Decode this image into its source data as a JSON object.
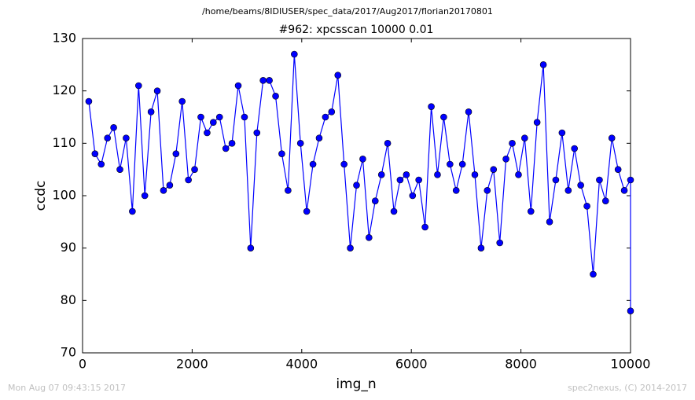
{
  "chart_data": {
    "type": "line",
    "suptitle": "/home/beams/8IDIUSER/spec_data/2017/Aug2017/florian20170801",
    "title": "#962: xpcsscan 10000 0.01",
    "xlabel": "img_n",
    "ylabel": "ccdc",
    "footer_left": "Mon Aug 07 09:43:15 2017",
    "footer_right": "spec2nexus, (C) 2014-2017",
    "x": [
      114,
      227,
      341,
      455,
      568,
      682,
      795,
      909,
      1023,
      1136,
      1250,
      1364,
      1477,
      1591,
      1705,
      1818,
      1932,
      2045,
      2159,
      2273,
      2386,
      2500,
      2614,
      2727,
      2841,
      2955,
      3068,
      3182,
      3295,
      3409,
      3523,
      3636,
      3750,
      3864,
      3977,
      4091,
      4205,
      4318,
      4432,
      4545,
      4659,
      4773,
      4886,
      5000,
      5114,
      5227,
      5341,
      5455,
      5568,
      5682,
      5795,
      5909,
      6023,
      6136,
      6250,
      6364,
      6477,
      6591,
      6705,
      6818,
      6932,
      7045,
      7159,
      7273,
      7386,
      7500,
      7614,
      7727,
      7841,
      7955,
      8068,
      8182,
      8295,
      8409,
      8523,
      8636,
      8750,
      8864,
      8977,
      9091,
      9205,
      9318,
      9432,
      9545,
      9659,
      9773,
      9886,
      10000,
      10000
    ],
    "series": [
      {
        "name": "ccdc",
        "color": "#0000ff",
        "values": [
          118,
          108,
          106,
          111,
          113,
          105,
          111,
          97,
          121,
          100,
          116,
          120,
          101,
          102,
          108,
          118,
          103,
          105,
          115,
          112,
          114,
          115,
          109,
          110,
          121,
          115,
          90,
          112,
          122,
          122,
          119,
          108,
          101,
          127,
          110,
          97,
          106,
          111,
          115,
          116,
          123,
          106,
          90,
          102,
          107,
          92,
          99,
          104,
          110,
          97,
          103,
          104,
          100,
          103,
          94,
          117,
          104,
          115,
          106,
          101,
          106,
          116,
          104,
          90,
          101,
          105,
          91,
          107,
          110,
          104,
          111,
          97,
          114,
          125,
          95,
          103,
          112,
          101,
          109,
          102,
          98,
          85,
          103,
          99,
          111,
          105,
          101,
          103,
          78
        ]
      }
    ],
    "xlim": [
      0,
      10000
    ],
    "xticks": [
      0,
      2000,
      4000,
      6000,
      8000,
      10000
    ],
    "ylim": [
      70,
      130
    ],
    "yticks": [
      70,
      80,
      90,
      100,
      110,
      120,
      130
    ]
  }
}
